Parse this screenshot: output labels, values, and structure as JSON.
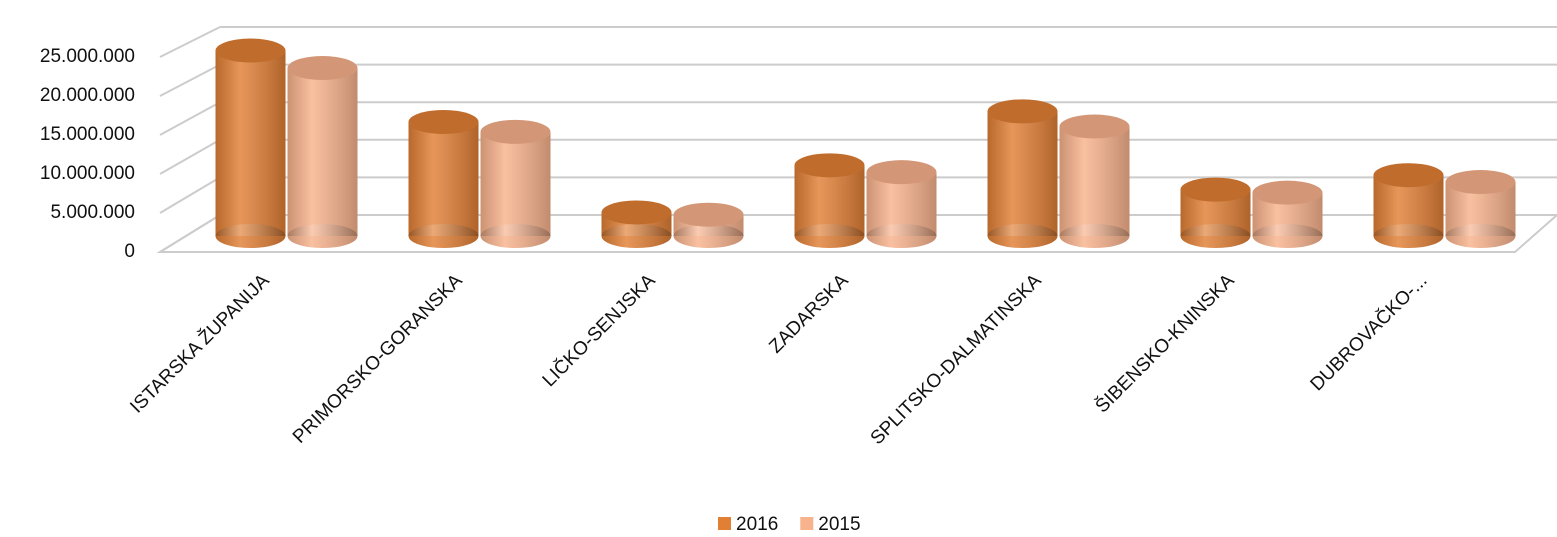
{
  "chart_data": {
    "type": "bar",
    "categories": [
      "ISTARSKA ŽUPANIJA",
      "PRIMORSKO-GORANSKA",
      "LIČKO-SENJSKA",
      "ZADARSKA",
      "SPLITSKO-DALMATINSKA",
      "ŠIBENSKO-KNINSKA",
      "DUBROVAČKO-..."
    ],
    "series": [
      {
        "name": "2016",
        "color": "#e17f35",
        "values": [
          24400000,
          15000000,
          3100000,
          9300000,
          16400000,
          6100000,
          8000000
        ]
      },
      {
        "name": "2015",
        "color": "#f8b28c",
        "values": [
          22100000,
          13700000,
          2800000,
          8400000,
          14400000,
          5700000,
          7100000
        ]
      }
    ],
    "ylim": [
      0,
      25000000
    ],
    "yticks": [
      {
        "value": 0,
        "label": "0"
      },
      {
        "value": 5000000,
        "label": "5.000.000"
      },
      {
        "value": 10000000,
        "label": "10.000.000"
      },
      {
        "value": 15000000,
        "label": "15.000.000"
      },
      {
        "value": 20000000,
        "label": "20.000.000"
      },
      {
        "value": 25000000,
        "label": "25.000.000"
      }
    ],
    "grid": true,
    "legend": "bottom"
  }
}
